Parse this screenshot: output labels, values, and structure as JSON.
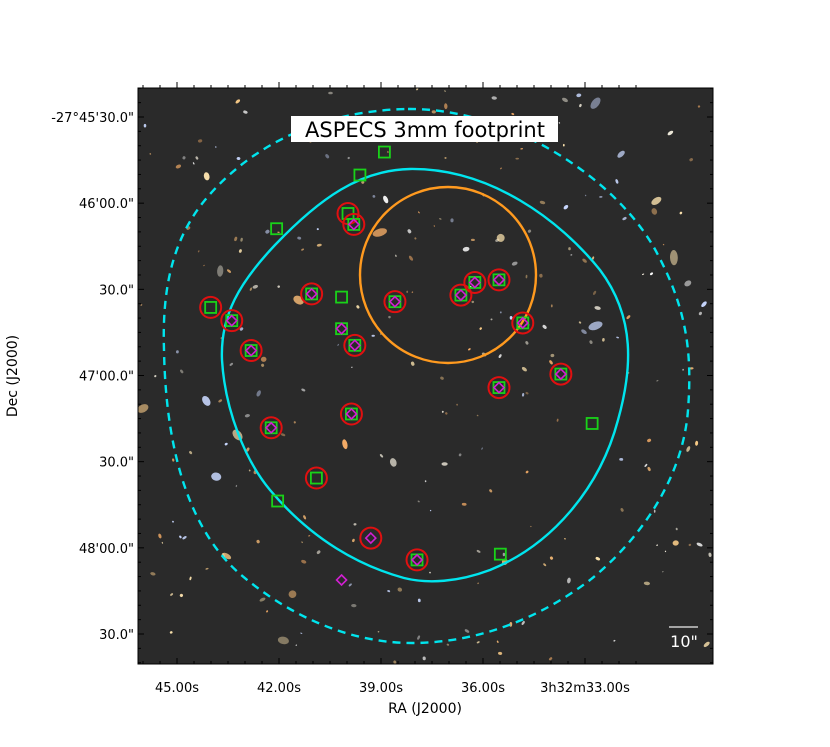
{
  "chart_data": {
    "type": "scatter",
    "title": "ASPECS 3mm footprint",
    "xlabel": "RA (J2000)",
    "ylabel": "Dec (J2000)",
    "x_ticks": [
      {
        "ra_s": 45.0,
        "label": "45.00s"
      },
      {
        "ra_s": 42.0,
        "label": "42.00s"
      },
      {
        "ra_s": 39.0,
        "label": "39.00s"
      },
      {
        "ra_s": 36.0,
        "label": "36.00s"
      },
      {
        "ra_s": 33.0,
        "label": "3h32m33.00s"
      }
    ],
    "y_ticks": [
      {
        "dec_arcsec": 30,
        "label": "-27°45'30.0\""
      },
      {
        "dec_arcsec": 60,
        "label": "46'00.0\""
      },
      {
        "dec_arcsec": 90,
        "label": "30.0\""
      },
      {
        "dec_arcsec": 120,
        "label": "47'00.0\""
      },
      {
        "dec_arcsec": 150,
        "label": "30.0\""
      },
      {
        "dec_arcsec": 180,
        "label": "48'00.0\""
      },
      {
        "dec_arcsec": 210,
        "label": "30.0\""
      }
    ],
    "scale_bar_label": "10\"",
    "grid": false,
    "colors": {
      "background": "#2a2a2a",
      "footprint_inner": "#00e5ee",
      "footprint_outer": "#00e5ee",
      "region_circle": "#ff9a1f",
      "green_square": "#19d219",
      "red_circle": "#e01010",
      "magenta_diamond": "#d21fd2"
    },
    "sources": [
      {
        "ra": 44.01,
        "dec": 96.3,
        "sq": true,
        "circ": true,
        "dia": false
      },
      {
        "ra": 43.39,
        "dec": 100.9,
        "sq": true,
        "circ": true,
        "dia": true
      },
      {
        "ra": 42.82,
        "dec": 111.3,
        "sq": true,
        "circ": true,
        "dia": true
      },
      {
        "ra": 42.07,
        "dec": 68.9,
        "sq": true,
        "circ": false,
        "dia": false
      },
      {
        "ra": 42.23,
        "dec": 138.2,
        "sq": true,
        "circ": true,
        "dia": true
      },
      {
        "ra": 42.04,
        "dec": 163.7,
        "sq": true,
        "circ": false,
        "dia": false
      },
      {
        "ra": 41.04,
        "dec": 91.6,
        "sq": true,
        "circ": true,
        "dia": true
      },
      {
        "ra": 40.9,
        "dec": 155.7,
        "sq": true,
        "circ": true,
        "dia": false
      },
      {
        "ra": 40.16,
        "dec": 92.7,
        "sq": true,
        "circ": false,
        "dia": false
      },
      {
        "ra": 40.16,
        "dec": 103.7,
        "sq": true,
        "circ": false,
        "dia": true
      },
      {
        "ra": 39.97,
        "dec": 63.6,
        "sq": true,
        "circ": true,
        "dia": false
      },
      {
        "ra": 39.8,
        "dec": 67.4,
        "sq": true,
        "circ": true,
        "dia": true
      },
      {
        "ra": 39.77,
        "dec": 109.5,
        "sq": true,
        "circ": true,
        "dia": true
      },
      {
        "ra": 39.87,
        "dec": 133.4,
        "sq": true,
        "circ": true,
        "dia": true
      },
      {
        "ra": 39.62,
        "dec": 50.2,
        "sq": true,
        "circ": false,
        "dia": false
      },
      {
        "ra": 38.9,
        "dec": 42.2,
        "sq": true,
        "circ": false,
        "dia": false
      },
      {
        "ra": 38.59,
        "dec": 94.3,
        "sq": true,
        "circ": true,
        "dia": true
      },
      {
        "ra": 39.3,
        "dec": 176.6,
        "sq": false,
        "circ": true,
        "dia": true
      },
      {
        "ra": 40.16,
        "dec": 191.2,
        "sq": false,
        "circ": false,
        "dia": true
      },
      {
        "ra": 37.94,
        "dec": 184.2,
        "sq": true,
        "circ": true,
        "dia": true
      },
      {
        "ra": 36.65,
        "dec": 92.0,
        "sq": true,
        "circ": true,
        "dia": true
      },
      {
        "ra": 36.24,
        "dec": 87.6,
        "sq": true,
        "circ": true,
        "dia": true
      },
      {
        "ra": 35.53,
        "dec": 86.7,
        "sq": true,
        "circ": true,
        "dia": true
      },
      {
        "ra": 35.53,
        "dec": 124.2,
        "sq": true,
        "circ": true,
        "dia": true
      },
      {
        "ra": 34.83,
        "dec": 101.7,
        "sq": true,
        "circ": true,
        "dia": true
      },
      {
        "ra": 33.71,
        "dec": 119.5,
        "sq": true,
        "circ": true,
        "dia": true
      },
      {
        "ra": 32.79,
        "dec": 136.7,
        "sq": true,
        "circ": false,
        "dia": false
      },
      {
        "ra": 35.49,
        "dec": 182.2,
        "sq": true,
        "circ": false,
        "dia": false
      }
    ]
  }
}
